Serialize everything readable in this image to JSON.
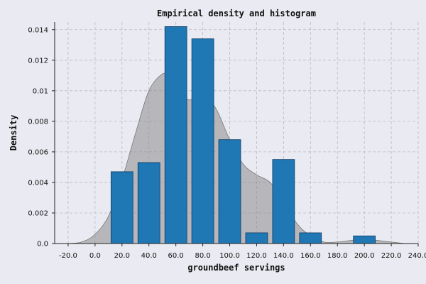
{
  "chart_data": {
    "type": "bar",
    "title": "Empirical density and histogram",
    "xlabel": "groundbeef servings",
    "ylabel": "Density",
    "xlim": [
      -30,
      240
    ],
    "ylim": [
      0,
      0.0145
    ],
    "xticks": [
      -20,
      0,
      20,
      40,
      60,
      80,
      100,
      120,
      140,
      160,
      180,
      200,
      220,
      240
    ],
    "xtick_labels": [
      "-20.0",
      "0.0",
      "20.0",
      "40.0",
      "60.0",
      "80.0",
      "100.0",
      "120.0",
      "140.0",
      "160.0",
      "180.0",
      "200.0",
      "220.0",
      "240.0"
    ],
    "yticks": [
      0,
      0.002,
      0.004,
      0.006,
      0.008,
      0.01,
      0.012,
      0.014
    ],
    "ytick_labels": [
      "0.0",
      "0.002",
      "0.004",
      "0.006",
      "0.008",
      "0.01",
      "0.012",
      "0.014"
    ],
    "grid": true,
    "histogram": {
      "bin_edges": [
        10,
        30,
        50,
        70,
        90,
        110,
        130,
        150,
        170,
        190,
        210
      ],
      "values": [
        0.0047,
        0.0053,
        0.0142,
        0.0134,
        0.0068,
        0.0007,
        0.0055,
        0.0007,
        0.0,
        0.0005
      ],
      "color": "#1f77b4"
    },
    "density": {
      "x": [
        -20,
        -10,
        0,
        10,
        20,
        30,
        40,
        50,
        55,
        60,
        70,
        80,
        90,
        100,
        110,
        120,
        130,
        140,
        150,
        160,
        170,
        180,
        190,
        200,
        210,
        220,
        230
      ],
      "y": [
        0.0,
        0.0001,
        0.0006,
        0.0018,
        0.0042,
        0.0072,
        0.01,
        0.0111,
        0.0109,
        0.0101,
        0.0094,
        0.0098,
        0.0088,
        0.0068,
        0.0052,
        0.0045,
        0.004,
        0.0028,
        0.0013,
        0.0005,
        0.0001,
        0.0001,
        0.0002,
        0.0003,
        0.0002,
        0.0001,
        0.0
      ],
      "color": "#808080"
    }
  }
}
